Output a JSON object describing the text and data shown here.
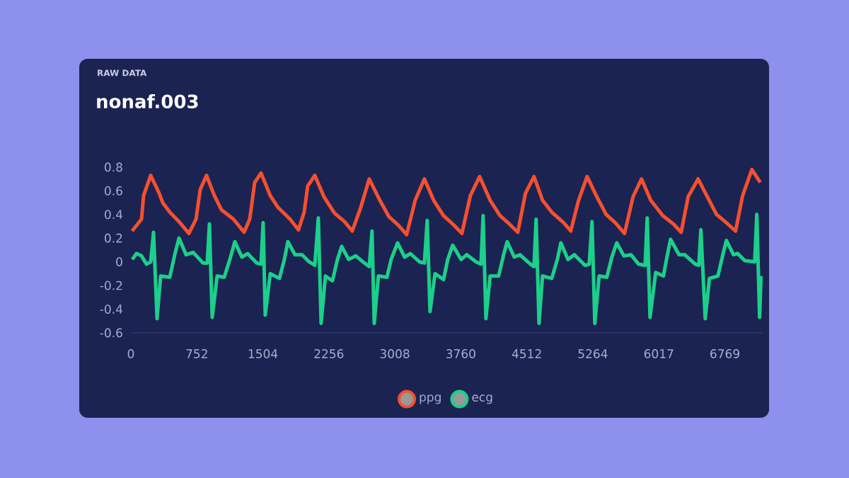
{
  "chart_data": {
    "type": "line",
    "subtitle": "RAW DATA",
    "title": "nonaf.003",
    "xlim": [
      0,
      7200
    ],
    "xticks": [
      0,
      752,
      1504,
      2256,
      3008,
      3760,
      4512,
      5264,
      6017,
      6769
    ],
    "ylim": [
      -0.6,
      0.8
    ],
    "yticks": [
      -0.6,
      -0.4,
      -0.2,
      0,
      0.2,
      0.4,
      0.6,
      0.8
    ],
    "legend": "bottom",
    "grid": false,
    "series": [
      {
        "name": "ppg",
        "color": "#f4502f",
        "x": [
          14,
          121,
          145,
          226,
          322,
          363,
          443,
          548,
          661,
          742,
          790,
          862,
          951,
          1032,
          1169,
          1290,
          1354,
          1411,
          1483,
          1588,
          1676,
          1814,
          1910,
          1975,
          2015,
          2096,
          2200,
          2321,
          2434,
          2523,
          2620,
          2716,
          2837,
          2942,
          3047,
          3143,
          3240,
          3345,
          3450,
          3563,
          3667,
          3772,
          3869,
          3974,
          4094,
          4207,
          4312,
          4409,
          4497,
          4594,
          4691,
          4796,
          4933,
          5013,
          5102,
          5199,
          5303,
          5416,
          5521,
          5626,
          5723,
          5819,
          5924,
          6061,
          6182,
          6271,
          6351,
          6464,
          6569,
          6674,
          6787,
          6891,
          6972,
          7077,
          7173
        ],
        "values": [
          0.26,
          0.36,
          0.56,
          0.73,
          0.58,
          0.5,
          0.42,
          0.34,
          0.24,
          0.36,
          0.61,
          0.73,
          0.56,
          0.44,
          0.36,
          0.25,
          0.36,
          0.67,
          0.75,
          0.56,
          0.46,
          0.36,
          0.27,
          0.42,
          0.64,
          0.73,
          0.55,
          0.41,
          0.34,
          0.26,
          0.46,
          0.7,
          0.52,
          0.38,
          0.31,
          0.23,
          0.52,
          0.7,
          0.52,
          0.39,
          0.32,
          0.24,
          0.56,
          0.72,
          0.52,
          0.39,
          0.32,
          0.25,
          0.58,
          0.72,
          0.52,
          0.42,
          0.33,
          0.26,
          0.52,
          0.72,
          0.56,
          0.4,
          0.33,
          0.24,
          0.55,
          0.7,
          0.52,
          0.39,
          0.32,
          0.25,
          0.55,
          0.7,
          0.55,
          0.4,
          0.33,
          0.26,
          0.56,
          0.78,
          0.67
        ]
      },
      {
        "name": "ecg",
        "color": "#1ccf8a",
        "x": [
          16,
          64,
          121,
          177,
          226,
          258,
          298,
          339,
          443,
          500,
          548,
          629,
          709,
          822,
          870,
          895,
          927,
          983,
          1064,
          1128,
          1185,
          1265,
          1330,
          1435,
          1483,
          1507,
          1531,
          1588,
          1693,
          1749,
          1789,
          1870,
          1951,
          2031,
          2096,
          2136,
          2168,
          2217,
          2297,
          2354,
          2402,
          2482,
          2563,
          2644,
          2716,
          2748,
          2773,
          2821,
          2918,
          2966,
          3039,
          3119,
          3184,
          3288,
          3345,
          3377,
          3409,
          3466,
          3563,
          3611,
          3667,
          3764,
          3829,
          3933,
          3990,
          4014,
          4046,
          4094,
          4191,
          4248,
          4288,
          4369,
          4433,
          4554,
          4594,
          4618,
          4651,
          4691,
          4796,
          4860,
          4900,
          4981,
          5054,
          5175,
          5223,
          5255,
          5287,
          5336,
          5424,
          5481,
          5537,
          5618,
          5698,
          5787,
          5860,
          5884,
          5916,
          5981,
          6069,
          6109,
          6150,
          6247,
          6311,
          6432,
          6472,
          6496,
          6545,
          6593,
          6690,
          6746,
          6787,
          6867,
          6915,
          6996,
          7109,
          7133,
          7165,
          7181
        ],
        "values": [
          0.02,
          0.07,
          0.05,
          -0.02,
          0,
          0.25,
          -0.48,
          -0.12,
          -0.13,
          0.06,
          0.2,
          0.06,
          0.08,
          -0.01,
          -0.01,
          0.32,
          -0.47,
          -0.12,
          -0.13,
          0.02,
          0.17,
          0.04,
          0.07,
          -0.01,
          -0.02,
          0.33,
          -0.45,
          -0.1,
          -0.14,
          0.02,
          0.17,
          0.06,
          0.06,
          0.0,
          -0.03,
          0.37,
          -0.52,
          -0.12,
          -0.16,
          0.02,
          0.13,
          0.02,
          0.05,
          0,
          -0.04,
          0.26,
          -0.52,
          -0.12,
          -0.13,
          0.02,
          0.16,
          0.04,
          0.07,
          0.0,
          -0.01,
          0.35,
          -0.42,
          -0.1,
          -0.15,
          0.02,
          0.14,
          0.02,
          0.06,
          0.0,
          -0.02,
          0.39,
          -0.48,
          -0.12,
          -0.12,
          0.06,
          0.17,
          0.04,
          0.06,
          -0.02,
          -0.04,
          0.36,
          -0.52,
          -0.12,
          -0.14,
          0.02,
          0.16,
          0.02,
          0.06,
          -0.03,
          -0.02,
          0.34,
          -0.52,
          -0.12,
          -0.13,
          0.04,
          0.16,
          0.05,
          0.06,
          -0.02,
          -0.03,
          0.37,
          -0.47,
          -0.09,
          -0.12,
          0.04,
          0.19,
          0.06,
          0.06,
          -0.02,
          -0.03,
          0.27,
          -0.48,
          -0.14,
          -0.12,
          0.06,
          0.18,
          0.06,
          0.07,
          0.01,
          0.0,
          0.4,
          -0.47,
          -0.12
        ]
      }
    ]
  }
}
